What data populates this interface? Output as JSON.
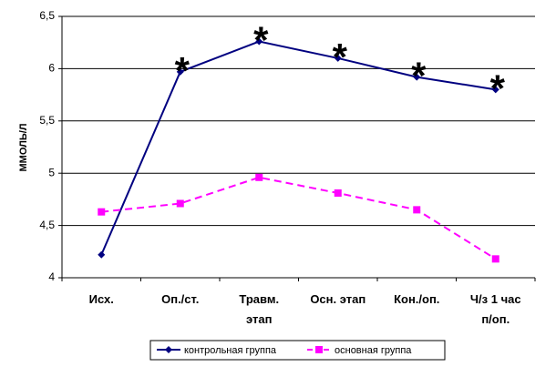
{
  "chart_data": {
    "type": "line",
    "y_label": "ММОЛЬ/Л",
    "categories": [
      "Исх.",
      "Оп./ст.",
      "Травм.\nэтап",
      "Осн. этап",
      "Кон./оп.",
      "Ч/з 1 час\nп/оп."
    ],
    "series": [
      {
        "name": "контрольная группа",
        "color": "#000080",
        "marker": "diamond",
        "dash": false,
        "values": [
          4.22,
          5.97,
          6.26,
          6.1,
          5.92,
          5.8
        ]
      },
      {
        "name": "основная группа",
        "color": "#ff00ff",
        "marker": "square",
        "dash": true,
        "values": [
          4.63,
          4.71,
          4.96,
          4.81,
          4.65,
          4.18
        ]
      }
    ],
    "annotations": [
      "*",
      "*",
      "*",
      "*",
      "*"
    ],
    "ylim": [
      4,
      6.5
    ],
    "yticks": [
      {
        "value": 4,
        "label": "4"
      },
      {
        "value": 4.5,
        "label": "4,5"
      },
      {
        "value": 5,
        "label": "5"
      },
      {
        "value": 5.5,
        "label": "5,5"
      },
      {
        "value": 6,
        "label": "6"
      },
      {
        "value": 6.5,
        "label": "6,5"
      }
    ],
    "grid": true,
    "legend": "bottom"
  }
}
